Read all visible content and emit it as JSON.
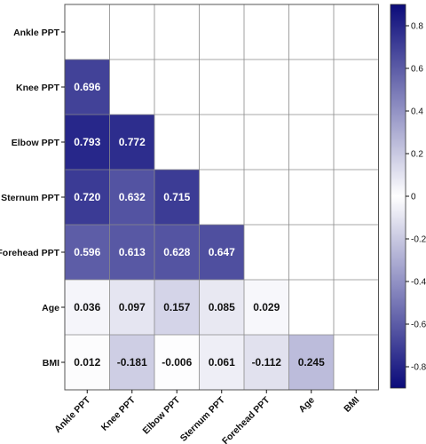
{
  "chart_data": {
    "type": "heatmap",
    "title": "",
    "variables": [
      "Ankle PPT",
      "Knee PPT",
      "Elbow PPT",
      "Sternum PPT",
      "Forehead PPT",
      "Age",
      "BMI"
    ],
    "matrix_lower": [
      [],
      [
        0.696
      ],
      [
        0.793,
        0.772
      ],
      [
        0.72,
        0.632,
        0.715
      ],
      [
        0.596,
        0.613,
        0.628,
        0.647
      ],
      [
        0.036,
        0.097,
        0.157,
        0.085,
        0.029
      ],
      [
        0.012,
        -0.181,
        -0.006,
        0.061,
        -0.112,
        0.245
      ]
    ],
    "matrix_labels": [
      [],
      [
        "0.696"
      ],
      [
        "0.793",
        "0.772"
      ],
      [
        "0.720",
        "0.632",
        "0.715"
      ],
      [
        "0.596",
        "0.613",
        "0.628",
        "0.647"
      ],
      [
        "0.036",
        "0.097",
        "0.157",
        "0.085",
        "0.029"
      ],
      [
        "0.012",
        "-0.181",
        "-0.006",
        "0.061",
        "-0.112",
        "0.245"
      ]
    ],
    "colorbar": {
      "range": [
        -0.9,
        0.9
      ],
      "ticks": [
        0.8,
        0.6,
        0.4,
        0.2,
        0,
        -0.2,
        -0.4,
        -0.6,
        -0.8
      ],
      "tick_labels": [
        "0.8",
        "0.6",
        "0.4",
        "0.2",
        "0",
        "-0.2",
        "-0.4",
        "-0.6",
        "-0.8"
      ],
      "max_color": "#0a0a7a",
      "mid_color": "#ffffff"
    },
    "grid": true,
    "legend_placement": "right"
  }
}
